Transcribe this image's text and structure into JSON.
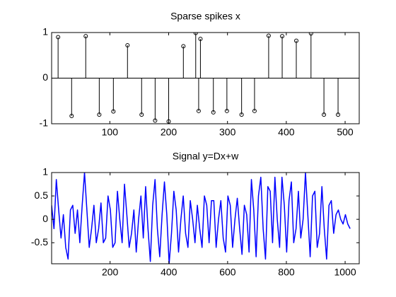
{
  "chart_data": [
    {
      "type": "stem",
      "title": "Sparse spikes x",
      "color": "#000000",
      "x": [
        12,
        35,
        59,
        82,
        106,
        130,
        154,
        177,
        200,
        225,
        246,
        251,
        254,
        276,
        299,
        324,
        346,
        370,
        393,
        417,
        442,
        464,
        488
      ],
      "values": [
        0.9,
        -0.83,
        0.92,
        -0.8,
        -0.73,
        0.72,
        -0.8,
        -0.93,
        -0.95,
        0.7,
        0.99,
        -0.72,
        0.86,
        -0.75,
        -0.72,
        -0.8,
        -0.72,
        0.93,
        0.92,
        0.82,
        0.98,
        -0.8,
        -0.8
      ],
      "xlim": [
        1,
        524
      ],
      "ylim": [
        -1,
        1
      ],
      "xticks": [
        100,
        200,
        300,
        400,
        500
      ],
      "yticks": [
        -1,
        0,
        1
      ]
    },
    {
      "type": "line",
      "title": "Signal y=Dx+w",
      "color": "#0000ff",
      "x": [
        1,
        9,
        17,
        25,
        33,
        41,
        49,
        57,
        65,
        73,
        81,
        89,
        97,
        105,
        113,
        121,
        129,
        137,
        145,
        153,
        161,
        169,
        177,
        185,
        193,
        201,
        209,
        217,
        225,
        233,
        241,
        249,
        257,
        265,
        273,
        281,
        289,
        297,
        305,
        313,
        321,
        329,
        337,
        345,
        353,
        361,
        369,
        377,
        385,
        393,
        401,
        409,
        417,
        425,
        433,
        441,
        449,
        457,
        465,
        473,
        481,
        489,
        497,
        505,
        513,
        521,
        529,
        537,
        545,
        553,
        561,
        569,
        577,
        585,
        593,
        601,
        609,
        617,
        625,
        633,
        641,
        649,
        657,
        665,
        673,
        681,
        689,
        697,
        705,
        713,
        721,
        729,
        737,
        745,
        753,
        761,
        769,
        777,
        785,
        793,
        801,
        809,
        817,
        825,
        833,
        841,
        849,
        857,
        865,
        873,
        881,
        889,
        897,
        905,
        913,
        921,
        929,
        937,
        945,
        953,
        961,
        969,
        977,
        985,
        993,
        1001,
        1009,
        1017
      ],
      "values": [
        0.3,
        -0.2,
        0.85,
        0.2,
        -0.4,
        0.1,
        -0.6,
        -0.85,
        0.2,
        0.3,
        -0.3,
        0.2,
        -0.5,
        0.3,
        1.0,
        0.2,
        -0.6,
        -0.2,
        0.3,
        -0.5,
        -0.2,
        0.35,
        -0.5,
        -0.4,
        0.5,
        0.2,
        -0.6,
        -0.5,
        0.6,
        0.0,
        -0.5,
        0.75,
        0.1,
        -0.6,
        -0.3,
        0.2,
        -0.7,
        0.0,
        0.5,
        -0.4,
        0.7,
        -0.2,
        -0.9,
        0.3,
        0.85,
        -0.2,
        -0.8,
        0.1,
        0.8,
        0.1,
        -0.95,
        -0.3,
        0.6,
        0.2,
        -0.7,
        0.0,
        0.5,
        -0.3,
        -0.6,
        0.4,
        0.0,
        -0.5,
        0.3,
        -0.2,
        -0.6,
        0.5,
        0.3,
        -0.5,
        0.4,
        0.4,
        -0.6,
        0.0,
        0.4,
        -0.4,
        -0.7,
        0.5,
        0.3,
        -0.6,
        0.0,
        0.45,
        -0.2,
        -0.75,
        0.3,
        0.1,
        -0.7,
        0.85,
        0.2,
        -0.8,
        0.5,
        0.9,
        -0.2,
        -0.85,
        0.7,
        0.6,
        -0.5,
        0.9,
        0.0,
        -0.6,
        0.9,
        0.3,
        -0.7,
        0.4,
        0.8,
        -0.5,
        -0.2,
        0.6,
        -0.4,
        0.0,
        1.0,
        0.1,
        -0.8,
        0.5,
        0.6,
        -0.6,
        -0.3,
        0.7,
        -0.2,
        -0.85,
        0.3,
        0.4,
        -0.3,
        0.1,
        0.2,
        0.0,
        -0.1,
        0.1,
        -0.1,
        -0.2
      ],
      "xlim": [
        1,
        1048
      ],
      "ylim": [
        -0.95,
        1
      ],
      "xticks": [
        200,
        400,
        600,
        800,
        1000
      ],
      "yticks": [
        -0.5,
        0,
        0.5,
        1
      ]
    }
  ]
}
